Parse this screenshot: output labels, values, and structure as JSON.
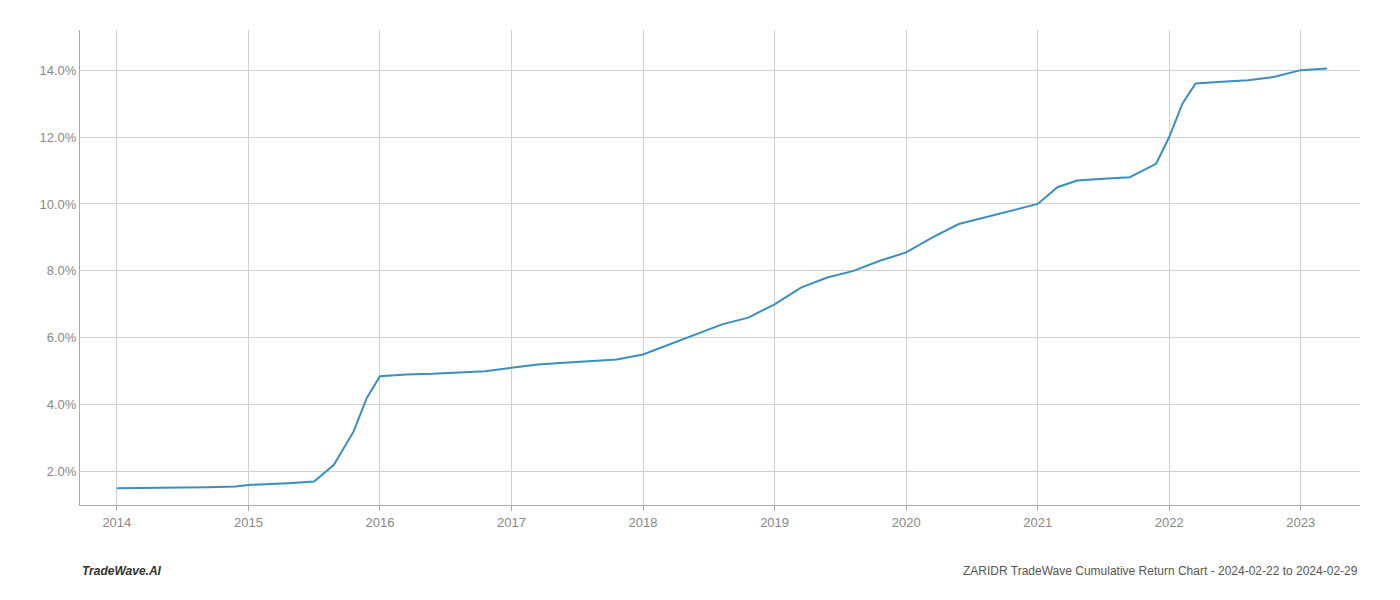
{
  "chart_data": {
    "type": "line",
    "x": [
      2014.0,
      2014.15,
      2014.3,
      2014.5,
      2014.7,
      2014.9,
      2015.0,
      2015.15,
      2015.3,
      2015.5,
      2015.65,
      2015.8,
      2015.9,
      2016.0,
      2016.1,
      2016.2,
      2016.4,
      2016.6,
      2016.8,
      2017.0,
      2017.2,
      2017.4,
      2017.6,
      2017.8,
      2018.0,
      2018.2,
      2018.4,
      2018.6,
      2018.8,
      2019.0,
      2019.2,
      2019.4,
      2019.6,
      2019.8,
      2020.0,
      2020.2,
      2020.4,
      2020.6,
      2020.8,
      2021.0,
      2021.15,
      2021.3,
      2021.5,
      2021.7,
      2021.9,
      2022.0,
      2022.1,
      2022.2,
      2022.4,
      2022.6,
      2022.8,
      2023.0,
      2023.2
    ],
    "values": [
      1.5,
      1.5,
      1.52,
      1.52,
      1.53,
      1.55,
      1.6,
      1.62,
      1.65,
      1.7,
      2.2,
      3.2,
      4.2,
      4.85,
      4.88,
      4.9,
      4.92,
      4.95,
      5.0,
      5.1,
      5.2,
      5.25,
      5.3,
      5.35,
      5.5,
      5.8,
      6.1,
      6.4,
      6.6,
      7.0,
      7.5,
      7.8,
      8.0,
      8.3,
      8.55,
      9.0,
      9.4,
      9.6,
      9.8,
      10.0,
      10.5,
      10.7,
      10.75,
      10.8,
      11.2,
      12.0,
      13.0,
      13.6,
      13.65,
      13.7,
      13.8,
      14.0,
      14.05
    ],
    "color": "#3a8fc0",
    "xlim": [
      2013.72,
      2023.45
    ],
    "ylim": [
      1.0,
      15.2
    ],
    "xticks": [
      2014,
      2015,
      2016,
      2017,
      2018,
      2019,
      2020,
      2021,
      2022,
      2023
    ],
    "yticks": [
      {
        "value": 2.0,
        "label": "2.0%"
      },
      {
        "value": 4.0,
        "label": "4.0%"
      },
      {
        "value": 6.0,
        "label": "6.0%"
      },
      {
        "value": 8.0,
        "label": "8.0%"
      },
      {
        "value": 10.0,
        "label": "10.0%"
      },
      {
        "value": 12.0,
        "label": "12.0%"
      },
      {
        "value": 14.0,
        "label": "14.0%"
      }
    ],
    "grid": true,
    "annotations": [
      "TradeWave.AI",
      "ZARIDR TradeWave Cumulative Return Chart - 2024-02-22 to 2024-02-29"
    ]
  }
}
